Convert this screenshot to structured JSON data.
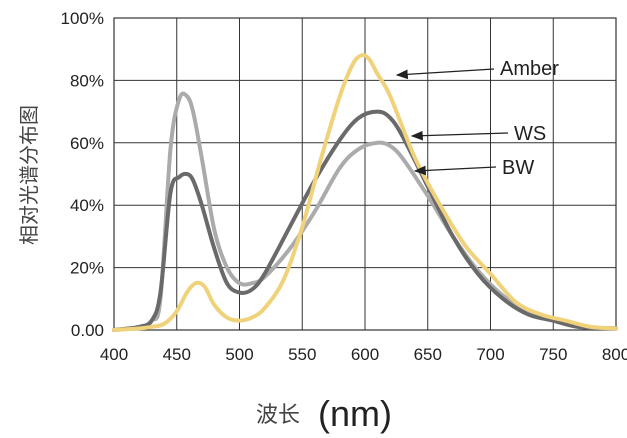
{
  "chart_data": {
    "type": "line",
    "ylabel": "相对光谱分布图",
    "xlabel": "波长",
    "xlabel_unit": "(nm)",
    "xlim": [
      400,
      800
    ],
    "ylim": [
      0,
      100
    ],
    "x_ticks": [
      "400",
      "450",
      "500",
      "550",
      "600",
      "650",
      "700",
      "750",
      "800"
    ],
    "y_ticks": [
      "0.00",
      "20%",
      "40%",
      "60%",
      "80%",
      "100%"
    ],
    "grid": true,
    "series": [
      {
        "name": "Amber",
        "color": "#F0D27A",
        "x": [
          400,
          420,
          430,
          440,
          450,
          458,
          465,
          472,
          480,
          490,
          500,
          510,
          520,
          535,
          550,
          565,
          580,
          590,
          597,
          603,
          610,
          620,
          640,
          660,
          680,
          700,
          720,
          740,
          760,
          780,
          800
        ],
        "y": [
          0,
          0.5,
          1,
          2,
          6,
          12,
          15,
          14,
          8,
          4,
          3,
          4,
          7,
          16,
          33,
          55,
          75,
          85,
          88,
          87,
          82,
          75,
          55,
          40,
          27,
          18,
          9,
          5,
          3,
          1,
          0.5
        ]
      },
      {
        "name": "WS",
        "color": "#6A6A6A",
        "x": [
          400,
          420,
          430,
          437,
          445,
          452,
          458,
          463,
          470,
          480,
          490,
          500,
          510,
          520,
          540,
          560,
          580,
          595,
          610,
          620,
          630,
          650,
          670,
          690,
          710,
          730,
          750,
          770,
          800
        ],
        "y": [
          0,
          1,
          3,
          12,
          44,
          49,
          50,
          48,
          40,
          26,
          15,
          12,
          13,
          18,
          33,
          48,
          61,
          68,
          70,
          68,
          62,
          46,
          30,
          18,
          10,
          5,
          3,
          1,
          0.5
        ]
      },
      {
        "name": "BW",
        "color": "#ABABAB",
        "x": [
          400,
          420,
          430,
          437,
          445,
          452,
          458,
          463,
          470,
          480,
          490,
          500,
          510,
          520,
          540,
          560,
          580,
          595,
          610,
          620,
          630,
          650,
          670,
          690,
          710,
          730,
          750,
          770,
          800
        ],
        "y": [
          0,
          1,
          3,
          10,
          58,
          74,
          75,
          70,
          55,
          32,
          20,
          15,
          15,
          17,
          26,
          38,
          52,
          58,
          60,
          59,
          55,
          43,
          30,
          19,
          11,
          6,
          3,
          1,
          0.5
        ]
      }
    ],
    "legend": [
      "Amber",
      "WS",
      "BW"
    ]
  }
}
